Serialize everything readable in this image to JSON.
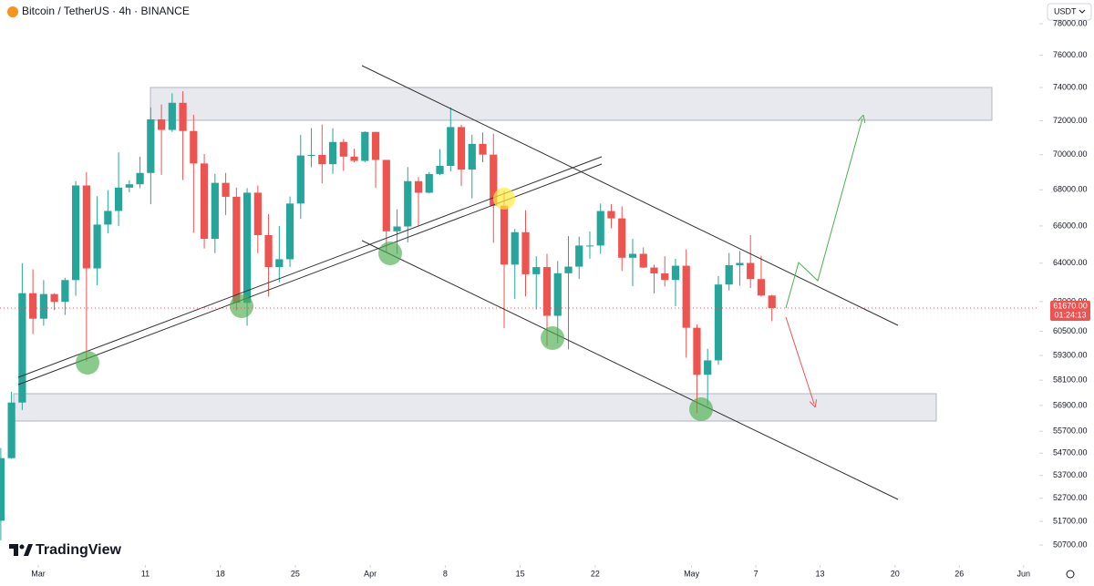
{
  "chart_data": {
    "type": "candlestick",
    "title": "Bitcoin / TetherUS · 4h · BINANCE",
    "currency": "USDT",
    "watermark": "TradingView",
    "log_scale": true,
    "grid": false,
    "up_color": "#26a69a",
    "down_color": "#ef5350",
    "xlim": [
      "02-26",
      "06-04"
    ],
    "xticks": [
      {
        "value": "03-01",
        "label": "Mar"
      },
      {
        "value": "03-11",
        "label": "11"
      },
      {
        "value": "03-18",
        "label": "18"
      },
      {
        "value": "03-25",
        "label": "25"
      },
      {
        "value": "04-01",
        "label": "Apr"
      },
      {
        "value": "04-08",
        "label": "8"
      },
      {
        "value": "04-15",
        "label": "15"
      },
      {
        "value": "04-22",
        "label": "22"
      },
      {
        "value": "05-01",
        "label": "May"
      },
      {
        "value": "05-07",
        "label": "7"
      },
      {
        "value": "05-13",
        "label": "13"
      },
      {
        "value": "05-20",
        "label": "20"
      },
      {
        "value": "05-26",
        "label": "26"
      },
      {
        "value": "06-01",
        "label": "Jun"
      }
    ],
    "ylim": [
      49870,
      79550
    ],
    "yticks": [
      {
        "value": 78000,
        "label": "78000.00"
      },
      {
        "value": 76000,
        "label": "76000.00"
      },
      {
        "value": 74000,
        "label": "74000.00"
      },
      {
        "value": 72000,
        "label": "72000.00"
      },
      {
        "value": 70000,
        "label": "70000.00"
      },
      {
        "value": 68000,
        "label": "68000.00"
      },
      {
        "value": 66000,
        "label": "66000.00"
      },
      {
        "value": 64000,
        "label": "64000.00"
      },
      {
        "value": 62000,
        "label": "62000.00"
      },
      {
        "value": 60500,
        "label": "60500.00"
      },
      {
        "value": 59300,
        "label": "59300.00"
      },
      {
        "value": 58100,
        "label": "58100.00"
      },
      {
        "value": 56900,
        "label": "56900.00"
      },
      {
        "value": 55700,
        "label": "55700.00"
      },
      {
        "value": 54700,
        "label": "54700.00"
      },
      {
        "value": 53700,
        "label": "53700.00"
      },
      {
        "value": 52700,
        "label": "52700.00"
      },
      {
        "value": 51700,
        "label": "51700.00"
      },
      {
        "value": 50700,
        "label": "50700.00"
      }
    ],
    "last_price": {
      "value": 61670,
      "label": "61670.00"
    },
    "countdown": "01:24:13",
    "x": [
      "02-26",
      "02-27",
      "02-28",
      "02-29",
      "03-01",
      "03-02",
      "03-03",
      "03-04",
      "03-05",
      "03-06",
      "03-07",
      "03-08",
      "03-09",
      "03-10",
      "03-11",
      "03-12",
      "03-13",
      "03-14",
      "03-15",
      "03-16",
      "03-17",
      "03-18",
      "03-19",
      "03-20",
      "03-21",
      "03-22",
      "03-23",
      "03-24",
      "03-25",
      "03-26",
      "03-27",
      "03-28",
      "03-29",
      "03-30",
      "03-31",
      "04-01",
      "04-02",
      "04-03",
      "04-04",
      "04-05",
      "04-06",
      "04-07",
      "04-08",
      "04-09",
      "04-10",
      "04-11",
      "04-12",
      "04-13",
      "04-14",
      "04-15",
      "04-16",
      "04-17",
      "04-18",
      "04-19",
      "04-20",
      "04-21",
      "04-22",
      "04-23",
      "04-24",
      "04-25",
      "04-26",
      "04-27",
      "04-28",
      "04-29",
      "04-30",
      "05-01",
      "05-02",
      "05-03",
      "05-04",
      "05-05",
      "05-06",
      "05-07",
      "05-08"
    ],
    "open": [
      51730,
      54476,
      57037,
      62432,
      61130,
      62387,
      61987,
      63113,
      68245,
      63724,
      66075,
      66824,
      68124,
      68313,
      68955,
      72078,
      71452,
      73072,
      71388,
      69499,
      65300,
      68393,
      67609,
      61937,
      67840,
      65501,
      63796,
      64209,
      67234,
      69959,
      69987,
      69455,
      70744,
      69892,
      69645,
      71333,
      69702,
      65709,
      65970,
      68488,
      67837,
      68896,
      69360,
      71620,
      69146,
      70631,
      70006,
      67116,
      63924,
      65661,
      63419,
      63793,
      61277,
      63470,
      63818,
      64940,
      64941,
      66819,
      66414,
      64289,
      64498,
      63770,
      63461,
      63118,
      63866,
      60672,
      58364,
      59060,
      62882,
      63892,
      64012,
      63165,
      62312
    ],
    "high": [
      54938,
      57550,
      64000,
      63676,
      63114,
      62433,
      63231,
      68499,
      69000,
      67637,
      67985,
      70136,
      68541,
      69887,
      72800,
      72969,
      73650,
      73777,
      72357,
      70044,
      68904,
      68957,
      68124,
      68100,
      68240,
      66650,
      65999,
      67624,
      71150,
      71561,
      71769,
      71552,
      70913,
      70355,
      71366,
      71342,
      69708,
      66914,
      69291,
      68725,
      69000,
      70327,
      72797,
      71758,
      71172,
      71305,
      71227,
      67932,
      65840,
      66867,
      64365,
      64499,
      64117,
      65450,
      65419,
      65695,
      67233,
      67199,
      67075,
      65297,
      64837,
      63923,
      64370,
      64228,
      64734,
      60841,
      59625,
      63320,
      64544,
      64646,
      65500,
      64390,
      62350
    ],
    "low": [
      50901,
      54450,
      56690,
      60364,
      60777,
      61561,
      61321,
      62300,
      59005,
      62848,
      65603,
      66000,
      67861,
      68094,
      67194,
      68845,
      71333,
      68555,
      65630,
      64780,
      64533,
      66600,
      61555,
      60775,
      64529,
      62260,
      63000,
      63803,
      66385,
      69280,
      68360,
      68903,
      69076,
      69560,
      69562,
      68110,
      64550,
      64493,
      65113,
      66011,
      67800,
      68824,
      69043,
      68210,
      67518,
      69567,
      65086,
      60660,
      62134,
      62274,
      61600,
      59768,
      59911,
      59600,
      63172,
      64237,
      64500,
      65864,
      63589,
      62794,
      63747,
      62424,
      62781,
      61765,
      59191,
      56552,
      56911,
      58848,
      62571,
      62822,
      62700,
      62250,
      61000
    ],
    "close": [
      54476,
      57037,
      62432,
      61130,
      62387,
      61987,
      63113,
      68245,
      63724,
      66075,
      66824,
      68124,
      68313,
      68955,
      72078,
      71452,
      73072,
      71388,
      69499,
      65300,
      68393,
      67609,
      61937,
      67840,
      65501,
      63796,
      64209,
      67234,
      69959,
      69987,
      69455,
      70744,
      69892,
      69645,
      71333,
      69702,
      65709,
      65970,
      68488,
      67837,
      68896,
      69360,
      71620,
      69146,
      70631,
      70006,
      67116,
      63924,
      65661,
      63419,
      63793,
      61277,
      63470,
      63818,
      64940,
      64941,
      66819,
      66414,
      64289,
      64498,
      63770,
      63461,
      63118,
      63866,
      60672,
      58364,
      59060,
      62882,
      63892,
      64012,
      63165,
      62312,
      61670
    ]
  }
}
